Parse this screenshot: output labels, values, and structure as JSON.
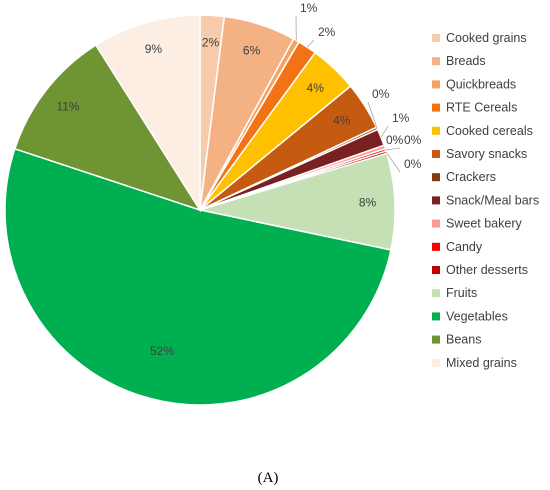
{
  "chart_data": {
    "type": "pie",
    "caption": "(A)",
    "slices": [
      {
        "name": "Cooked grains",
        "value": 2,
        "label": "2%",
        "color": "#f8cbad"
      },
      {
        "name": "Breads",
        "value": 6,
        "label": "6%",
        "color": "#f4b183"
      },
      {
        "name": "Quickbreads",
        "value": 0.5,
        "label": "1%",
        "color": "#f4a460"
      },
      {
        "name": "RTE Cereals",
        "value": 1.6,
        "label": "2%",
        "color": "#f47216"
      },
      {
        "name": "Cooked cereals",
        "value": 4,
        "label": "4%",
        "color": "#ffc000"
      },
      {
        "name": "Savory snacks",
        "value": 4,
        "label": "4%",
        "color": "#c55a11"
      },
      {
        "name": "Crackers",
        "value": 0.2,
        "label": "0%",
        "color": "#843c0c"
      },
      {
        "name": "Snack/Meal bars",
        "value": 1.4,
        "label": "1%",
        "color": "#7b2020"
      },
      {
        "name": "Sweet bakery",
        "value": 0.3,
        "label": "0%",
        "color": "#ff9999"
      },
      {
        "name": "Candy",
        "value": 0.2,
        "label": "0%",
        "color": "#ff0000"
      },
      {
        "name": "Other desserts",
        "value": 0.2,
        "label": "0%",
        "color": "#c00000"
      },
      {
        "name": "Fruits",
        "value": 8,
        "label": "8%",
        "color": "#c5e0b4"
      },
      {
        "name": "Vegetables",
        "value": 52,
        "label": "52%",
        "color": "#00b050"
      },
      {
        "name": "Beans",
        "value": 11,
        "label": "11%",
        "color": "#6e9434"
      },
      {
        "name": "Mixed grains",
        "value": 9,
        "label": "9%",
        "color": "#fdeee4"
      }
    ],
    "legend_position": "right"
  }
}
